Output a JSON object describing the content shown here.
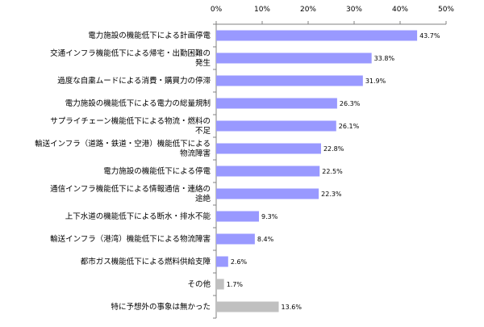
{
  "chart_data": {
    "type": "bar",
    "orientation": "horizontal",
    "title": "",
    "xlabel": "",
    "ylabel": "",
    "xlim": [
      0,
      50
    ],
    "x_ticks": [
      0,
      10,
      20,
      30,
      40,
      50
    ],
    "tick_suffix": "%",
    "value_suffix": "%",
    "grid": false,
    "categories": [
      [
        "電力施設の機能低下による計画停電"
      ],
      [
        "交通インフラ機能低下による帰宅・出勤困難の",
        "発生"
      ],
      [
        "過度な自粛ムードによる消費・購買力の停滞"
      ],
      [
        "電力施設の機能低下による電力の総量規制"
      ],
      [
        "サプライチェーン機能低下による物流・燃料の",
        "不足"
      ],
      [
        "輸送インフラ（道路・鉄道・空港）機能低下による",
        "物流障害"
      ],
      [
        "電力施設の機能低下による停電"
      ],
      [
        "通信インフラ機能低下による情報通信・連絡の",
        "途絶"
      ],
      [
        "上下水道の機能低下による断水・排水不能"
      ],
      [
        "輸送インフラ（港湾）機能低下による物流障害"
      ],
      [
        "都市ガス機能低下による燃料供給支障"
      ],
      [
        "その他"
      ],
      [
        "特に予想外の事象は無かった"
      ]
    ],
    "values": [
      43.7,
      33.8,
      31.9,
      26.3,
      26.1,
      22.8,
      22.5,
      22.3,
      9.3,
      8.4,
      2.6,
      1.7,
      13.6
    ],
    "bar_colors": [
      "#9999ff",
      "#9999ff",
      "#9999ff",
      "#9999ff",
      "#9999ff",
      "#9999ff",
      "#9999ff",
      "#9999ff",
      "#9999ff",
      "#9999ff",
      "#9999ff",
      "#c0c0c0",
      "#c0c0c0"
    ],
    "axis_color": "#808080"
  }
}
